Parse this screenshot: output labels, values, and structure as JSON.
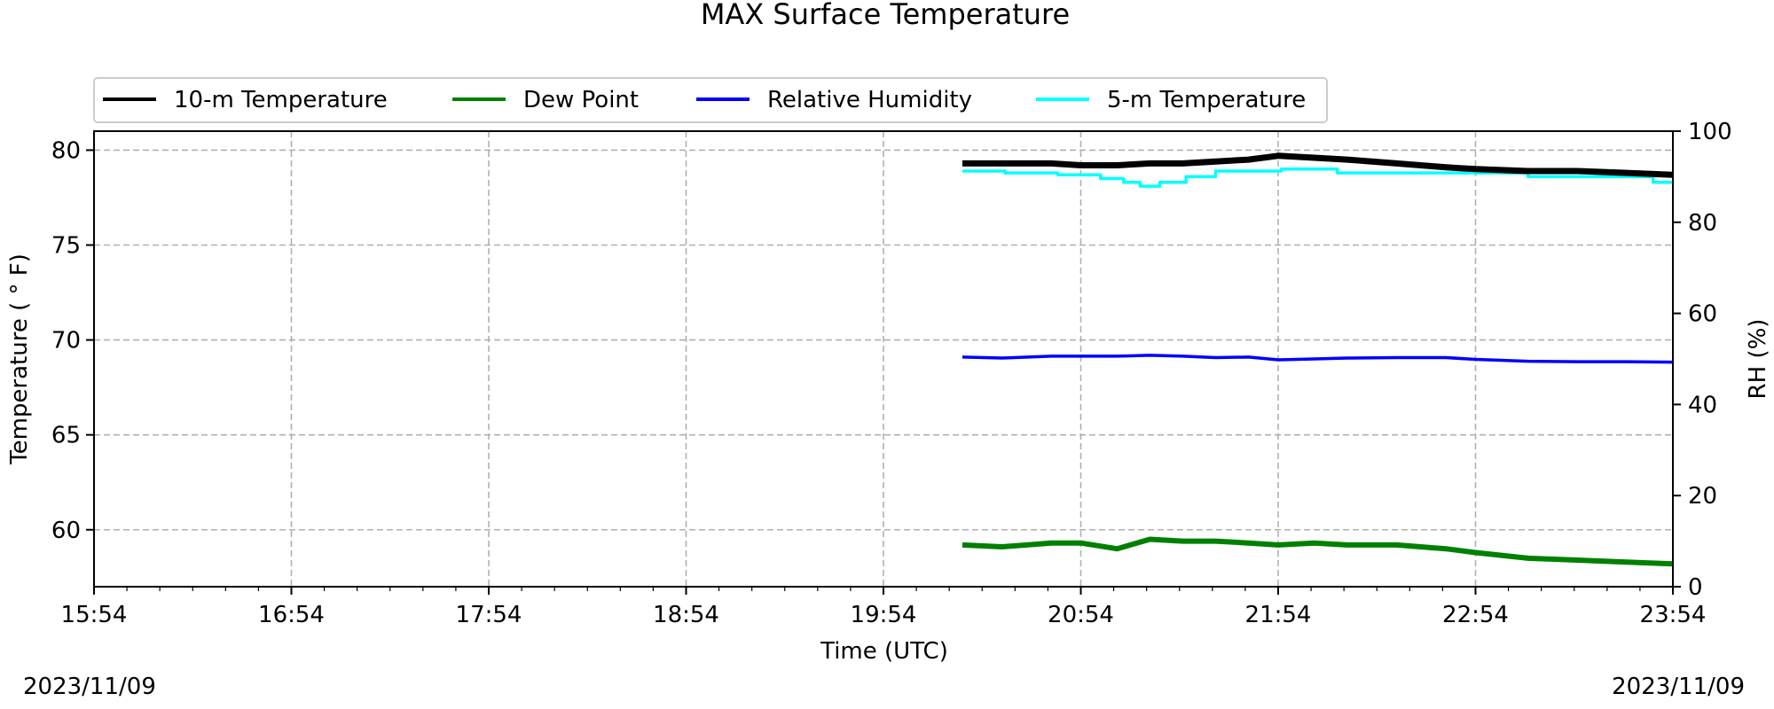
{
  "chart_data": {
    "type": "line",
    "title": "MAX Surface Temperature",
    "xlabel": "Time (UTC)",
    "ylabel": "Temperature ($^\\circ$F)",
    "ylabel_display": "Temperature ( ° F)",
    "y2label": "RH (%)",
    "xlim_minutes": [
      0,
      480
    ],
    "ylim": [
      57,
      81
    ],
    "y2lim": [
      0,
      100
    ],
    "x_ticks": [
      "15:54",
      "16:54",
      "17:54",
      "18:54",
      "19:54",
      "20:54",
      "21:54",
      "22:54",
      "23:54"
    ],
    "y_ticks": [
      60,
      65,
      70,
      75,
      80
    ],
    "y2_ticks": [
      0,
      20,
      40,
      60,
      80,
      100
    ],
    "grid": true,
    "legend_placement": "top-left, above plot",
    "series": [
      {
        "name": "10-m Temperature",
        "axis": "left",
        "color": "#000000",
        "x": [
          "20:18",
          "20:30",
          "20:45",
          "20:54",
          "21:05",
          "21:15",
          "21:25",
          "21:35",
          "21:45",
          "21:54",
          "22:05",
          "22:15",
          "22:30",
          "22:45",
          "22:54",
          "23:10",
          "23:25",
          "23:40",
          "23:54"
        ],
        "values": [
          79.3,
          79.3,
          79.3,
          79.2,
          79.2,
          79.3,
          79.3,
          79.4,
          79.5,
          79.7,
          79.6,
          79.5,
          79.3,
          79.1,
          79.0,
          78.9,
          78.9,
          78.8,
          78.7
        ]
      },
      {
        "name": "Dew Point",
        "axis": "left",
        "color": "#008000",
        "x": [
          "20:18",
          "20:30",
          "20:45",
          "20:54",
          "21:05",
          "21:15",
          "21:25",
          "21:35",
          "21:45",
          "21:54",
          "22:05",
          "22:15",
          "22:30",
          "22:45",
          "22:54",
          "23:10",
          "23:25",
          "23:40",
          "23:54"
        ],
        "values": [
          59.2,
          59.1,
          59.3,
          59.3,
          59.0,
          59.5,
          59.4,
          59.4,
          59.3,
          59.2,
          59.3,
          59.2,
          59.2,
          59.0,
          58.8,
          58.5,
          58.4,
          58.3,
          58.2
        ]
      },
      {
        "name": "Relative Humidity",
        "axis": "right",
        "color": "#0000ff",
        "x": [
          "20:18",
          "20:30",
          "20:45",
          "20:54",
          "21:05",
          "21:15",
          "21:25",
          "21:35",
          "21:45",
          "21:54",
          "22:05",
          "22:15",
          "22:30",
          "22:45",
          "22:54",
          "23:10",
          "23:25",
          "23:40",
          "23:54"
        ],
        "values": [
          50.4,
          50.2,
          50.6,
          50.6,
          50.6,
          50.8,
          50.6,
          50.3,
          50.4,
          49.8,
          50.0,
          50.2,
          50.3,
          50.3,
          49.9,
          49.5,
          49.4,
          49.4,
          49.3
        ]
      },
      {
        "name": "5-m Temperature",
        "axis": "left",
        "color": "#00ffff",
        "x": [
          "20:18",
          "20:31",
          "20:31",
          "20:47",
          "20:47",
          "21:00",
          "21:00",
          "21:07",
          "21:07",
          "21:12",
          "21:12",
          "21:18",
          "21:18",
          "21:26",
          "21:26",
          "21:35",
          "21:35",
          "21:55",
          "21:55",
          "22:12",
          "22:12",
          "23:10",
          "23:10",
          "23:48",
          "23:48",
          "23:54"
        ],
        "values": [
          78.9,
          78.9,
          78.8,
          78.8,
          78.7,
          78.7,
          78.5,
          78.5,
          78.3,
          78.3,
          78.1,
          78.1,
          78.3,
          78.3,
          78.6,
          78.6,
          78.9,
          78.9,
          79.0,
          79.0,
          78.8,
          78.8,
          78.6,
          78.6,
          78.3,
          78.3
        ]
      }
    ]
  },
  "footer": {
    "date_left": "2023/11/09",
    "date_right": "2023/11/09"
  }
}
